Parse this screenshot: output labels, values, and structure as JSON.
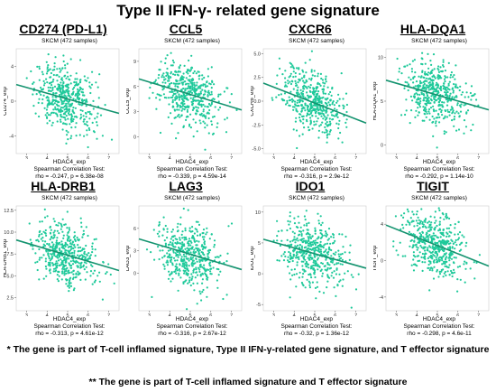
{
  "title": "Type II IFN-γ- related gene signature",
  "footnotes": [
    "* The gene is part of T-cell inflamed signature, Type II IFN-γ-related gene signature, and T effector signature",
    "** The gene is part of T-cell inflamed signature and T effector signature"
  ],
  "colors": {
    "points": "#1ec99a",
    "line": "#14936f",
    "border": "#cccccc"
  },
  "chart_data": [
    {
      "type": "scatter",
      "title": "CD274 (PD-L1)",
      "subtitle": "SKCM (472 samples)",
      "xlabel": "HDAC4_exp",
      "ylabel": "CD274_exp",
      "xlim": [
        2.5,
        7.5
      ],
      "ylim": [
        -6,
        6
      ],
      "xticks": [
        3,
        4,
        5,
        6,
        7
      ],
      "yticks": [
        -4,
        0,
        4
      ],
      "test": "Spearman Correlation Test:",
      "stats": "rho = -0.247, p = 6.38e-08",
      "fit": {
        "x": [
          2.5,
          7.5
        ],
        "y": [
          1.9,
          -1.4
        ]
      }
    },
    {
      "type": "scatter",
      "title": "CCL5",
      "subtitle": "SKCM (472 samples)",
      "xlabel": "HDAC4_exp",
      "ylabel": "CCL5_exp",
      "xlim": [
        2.5,
        7.5
      ],
      "ylim": [
        -2,
        10.5
      ],
      "xticks": [
        3,
        4,
        5,
        6,
        7
      ],
      "yticks": [
        0,
        3,
        6,
        9
      ],
      "test": "Spearman Correlation Test:",
      "stats": "rho = -0.339, p = 4.59e-14",
      "fit": {
        "x": [
          2.5,
          7.5
        ],
        "y": [
          6.9,
          3.2
        ]
      }
    },
    {
      "type": "scatter",
      "title": "CXCR6",
      "subtitle": "SKCM (472 samples)",
      "xlabel": "HDAC4_exp",
      "ylabel": "CXCR6_exp",
      "xlim": [
        2.5,
        7.5
      ],
      "ylim": [
        -5.5,
        5.5
      ],
      "xticks": [
        3,
        4,
        5,
        6,
        7
      ],
      "yticks": [
        -5.0,
        -2.5,
        0.0,
        2.5,
        5.0
      ],
      "test": "Spearman Correlation Test:",
      "stats": "rho = -0.316, p = 2.9e-12",
      "fit": {
        "x": [
          2.5,
          7.5
        ],
        "y": [
          1.9,
          -2.3
        ]
      }
    },
    {
      "type": "scatter",
      "title": "HLA-DQA1",
      "subtitle": "SKCM (472 samples)",
      "xlabel": "HDAC4_exp",
      "ylabel": "HLA-DQA1_exp",
      "xlim": [
        2.5,
        7.5
      ],
      "ylim": [
        -1,
        11
      ],
      "xticks": [
        3,
        4,
        5,
        6,
        7
      ],
      "yticks": [
        0,
        5,
        10
      ],
      "test": "Spearman Correlation Test:",
      "stats": "rho = -0.292, p = 1.14e-10",
      "fit": {
        "x": [
          2.5,
          7.5
        ],
        "y": [
          7.4,
          4.0
        ]
      }
    },
    {
      "type": "scatter",
      "title": "HLA-DRB1",
      "subtitle": "SKCM (472 samples)",
      "xlabel": "HDAC4_exp",
      "ylabel": "HLA-DRB1_exp",
      "xlim": [
        2.5,
        7.5
      ],
      "ylim": [
        1,
        13
      ],
      "xticks": [
        3,
        4,
        5,
        6,
        7
      ],
      "yticks": [
        2.5,
        5.0,
        7.5,
        10.0,
        12.5
      ],
      "test": "Spearman Correlation Test:",
      "stats": "rho = -0.313, p = 4.61e-12",
      "fit": {
        "x": [
          2.5,
          7.5
        ],
        "y": [
          9.1,
          5.6
        ]
      }
    },
    {
      "type": "scatter",
      "title": "LAG3",
      "subtitle": "SKCM (472 samples)",
      "xlabel": "HDAC4_exp",
      "ylabel": "LAG3_exp",
      "xlim": [
        2.5,
        7.5
      ],
      "ylim": [
        -5,
        9
      ],
      "xticks": [
        3,
        4,
        5,
        6,
        7
      ],
      "yticks": [
        0,
        3,
        6
      ],
      "test": "Spearman Correlation Test:",
      "stats": "rho = -0.316, p = 2.67e-12",
      "fit": {
        "x": [
          2.5,
          7.5
        ],
        "y": [
          4.6,
          0.5
        ]
      }
    },
    {
      "type": "scatter",
      "title": "IDO1",
      "subtitle": "SKCM (472 samples)",
      "xlabel": "HDAC4_exp",
      "ylabel": "IDO1_exp",
      "xlim": [
        2.5,
        7.5
      ],
      "ylim": [
        -6,
        11
      ],
      "xticks": [
        3,
        4,
        5,
        6,
        7
      ],
      "yticks": [
        -5,
        0,
        5,
        10
      ],
      "test": "Spearman Correlation Test:",
      "stats": "rho = -0.32, p = 1.36e-12",
      "fit": {
        "x": [
          2.5,
          7.5
        ],
        "y": [
          5.6,
          0.9
        ]
      }
    },
    {
      "type": "scatter",
      "title": "TIGIT",
      "subtitle": "SKCM (472 samples)",
      "xlabel": "HDAC4_exp",
      "ylabel": "TIGIT_exp",
      "xlim": [
        2.5,
        7.5
      ],
      "ylim": [
        -5.5,
        6
      ],
      "xticks": [
        3,
        4,
        5,
        6,
        7
      ],
      "yticks": [
        -4,
        0,
        4
      ],
      "test": "Spearman Correlation Test:",
      "stats": "rho = -0.298, p = 4.6e-11",
      "fit": {
        "x": [
          2.5,
          7.5
        ],
        "y": [
          3.9,
          -0.6
        ]
      }
    }
  ]
}
